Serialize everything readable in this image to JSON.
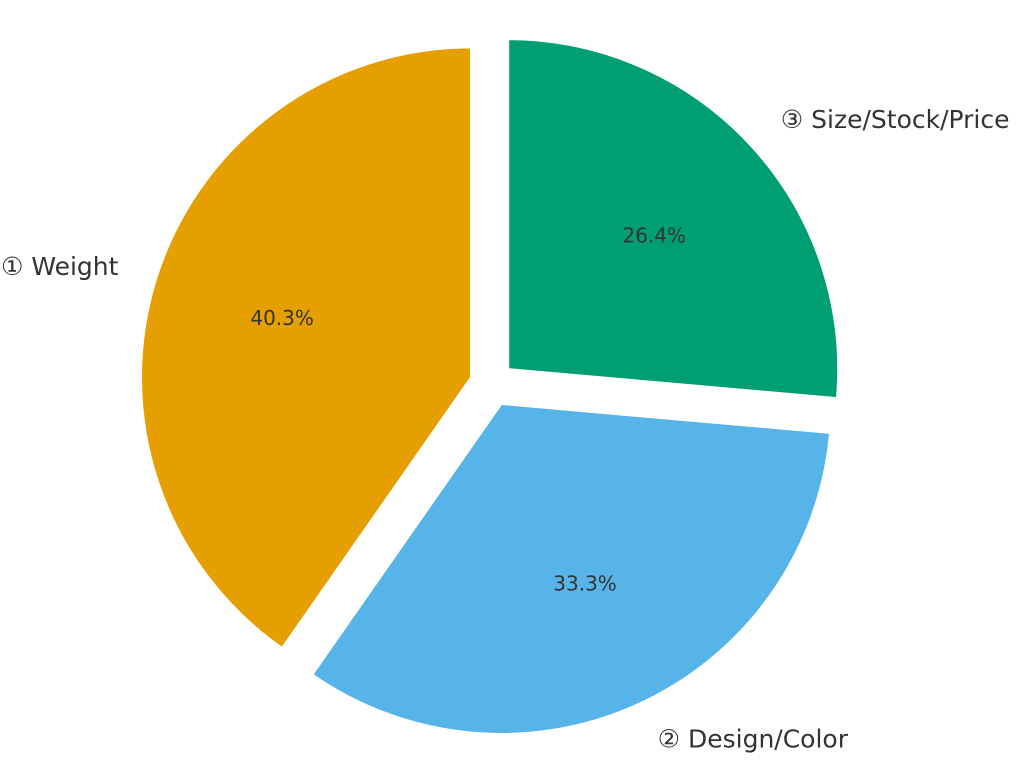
{
  "chart_data": {
    "type": "pie",
    "title": "",
    "start_angle_deg": 90,
    "direction": "clockwise",
    "slices": [
      {
        "label": "③ Size/Stock/Price",
        "value": 26.4,
        "percent_label": "26.4%",
        "color": "#009E73"
      },
      {
        "label": "② Design/Color",
        "value": 33.3,
        "percent_label": "33.3%",
        "color": "#56B4E9"
      },
      {
        "label": "① Weight",
        "value": 40.3,
        "percent_label": "40.3%",
        "color": "#E69F00"
      }
    ],
    "exploded": true,
    "legend": "none"
  }
}
